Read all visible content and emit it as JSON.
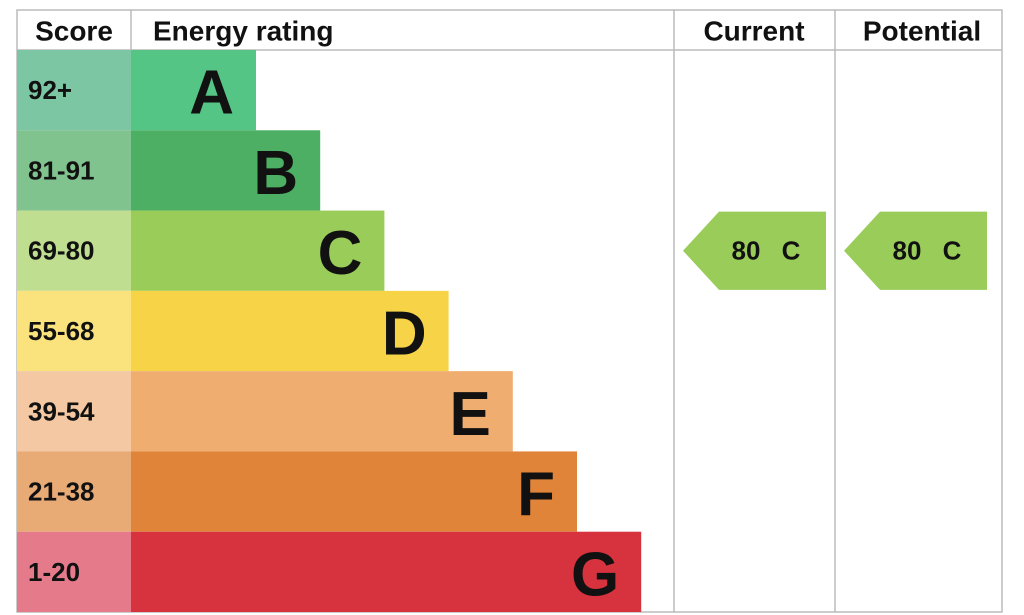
{
  "header": {
    "score": "Score",
    "energy_rating": "Energy rating",
    "current": "Current",
    "potential": "Potential"
  },
  "bands": [
    {
      "score": "92+",
      "rating": "A",
      "color": "#55c585",
      "score_color": "#7cc6a4"
    },
    {
      "score": "81-91",
      "rating": "B",
      "color": "#4caf63",
      "score_color": "#80c38f"
    },
    {
      "score": "69-80",
      "rating": "C",
      "color": "#9acc5a",
      "score_color": "#c0de8f"
    },
    {
      "score": "55-68",
      "rating": "D",
      "color": "#f7d447",
      "score_color": "#fae37d"
    },
    {
      "score": "39-54",
      "rating": "E",
      "color": "#efad6f",
      "score_color": "#f3c8a2"
    },
    {
      "score": "21-38",
      "rating": "F",
      "color": "#e0843a",
      "score_color": "#e8ab76"
    },
    {
      "score": "1-20",
      "rating": "G",
      "color": "#d7333f",
      "score_color": "#e47a8a"
    }
  ],
  "current": {
    "value": 80,
    "rating": "C"
  },
  "potential": {
    "value": 80,
    "rating": "C"
  }
}
